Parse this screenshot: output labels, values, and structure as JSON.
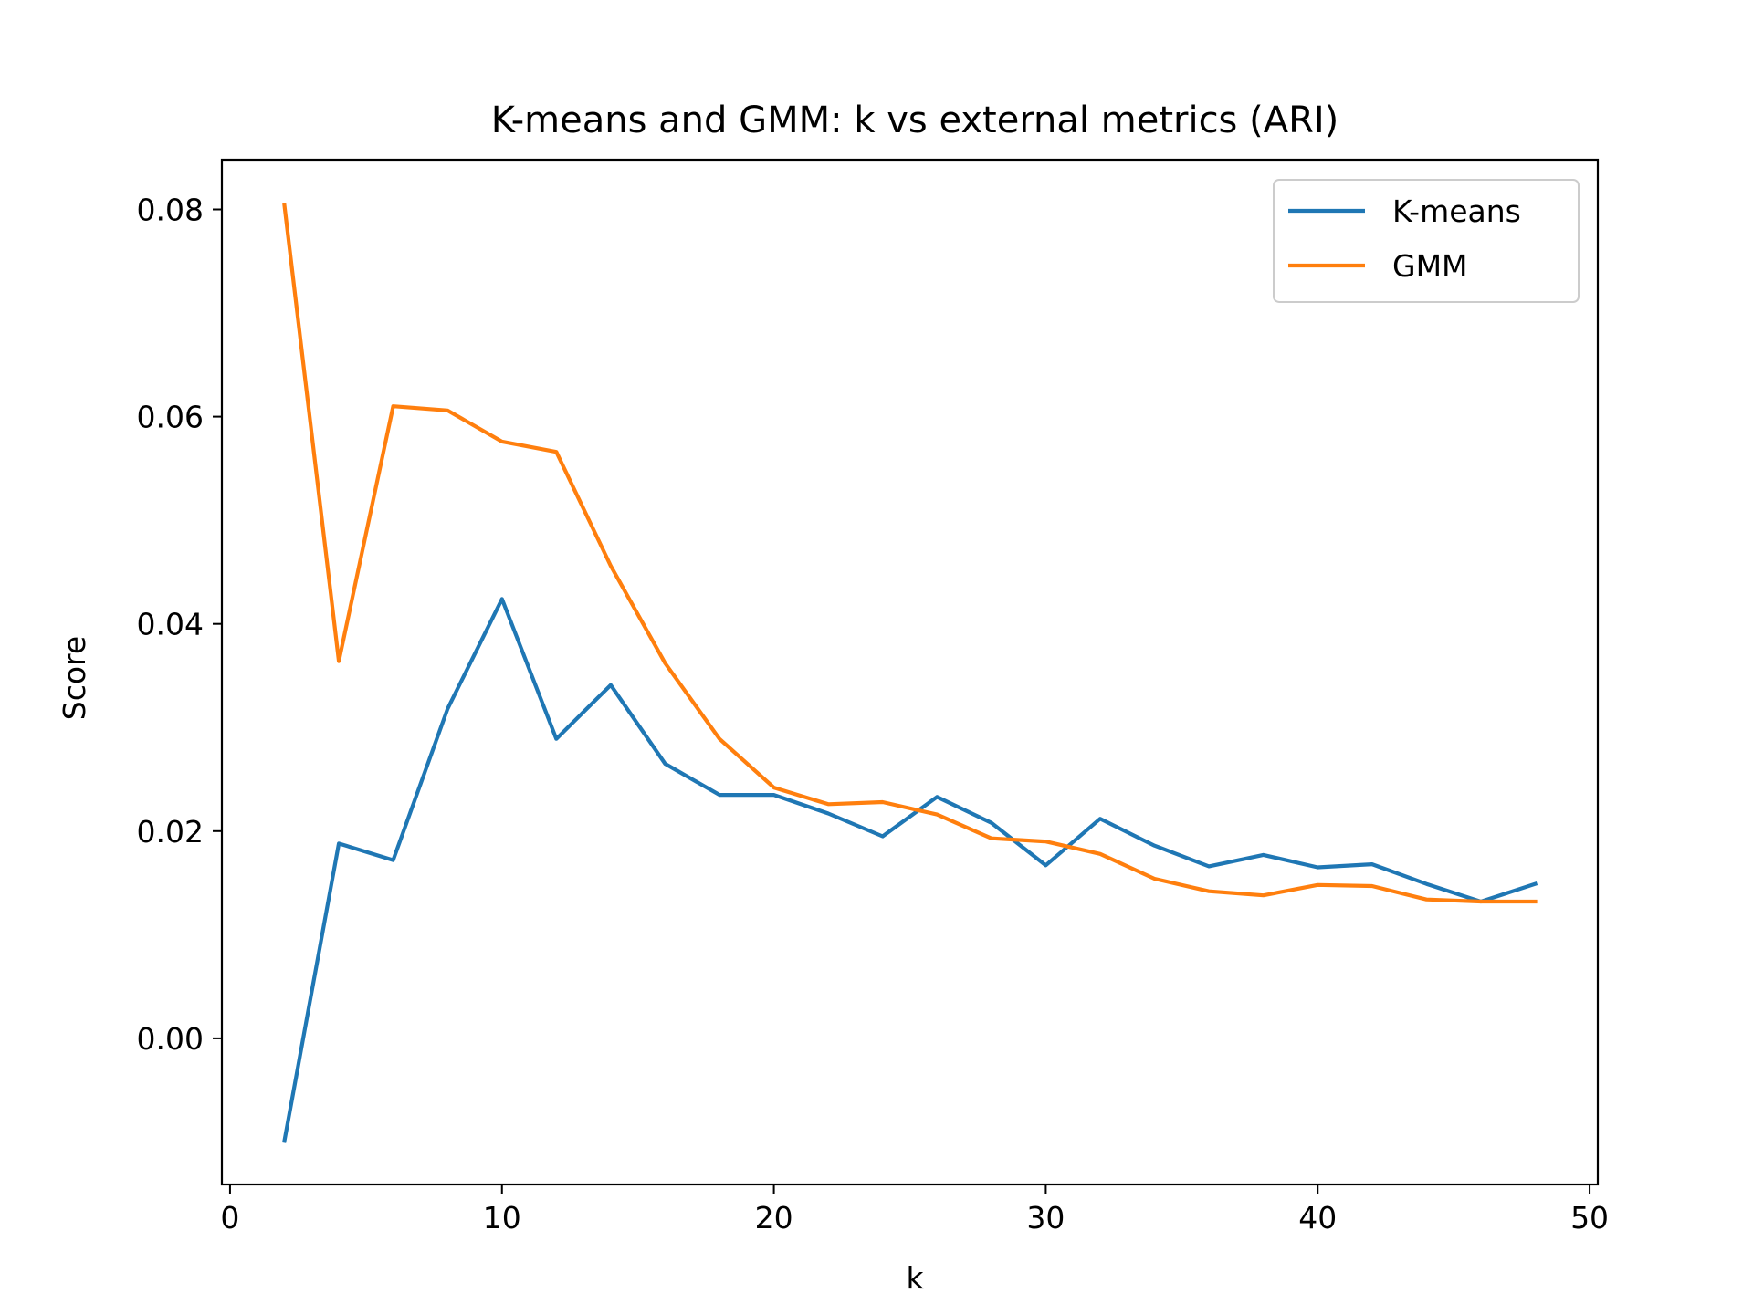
{
  "chart_data": {
    "type": "line",
    "title": "K-means and GMM: k vs external metrics (ARI)",
    "xlabel": "k",
    "ylabel": "Score",
    "xlim": [
      -0.3,
      50.3
    ],
    "ylim": [
      -0.0141,
      0.0848
    ],
    "xticks": [
      0,
      10,
      20,
      30,
      40,
      50
    ],
    "yticks": [
      0.0,
      0.02,
      0.04,
      0.06,
      0.08
    ],
    "xtick_labels": [
      "0",
      "10",
      "20",
      "30",
      "40",
      "50"
    ],
    "ytick_labels": [
      "0.00",
      "0.02",
      "0.04",
      "0.06",
      "0.08"
    ],
    "grid": false,
    "legend": "top-right",
    "x": [
      2,
      4,
      6,
      8,
      10,
      12,
      14,
      16,
      18,
      20,
      22,
      24,
      26,
      28,
      30,
      32,
      34,
      36,
      38,
      40,
      42,
      44,
      46,
      48
    ],
    "series": [
      {
        "name": "K-means",
        "color": "#1f77b4",
        "values": [
          -0.0099,
          0.0188,
          0.0172,
          0.0318,
          0.0424,
          0.0289,
          0.0341,
          0.0265,
          0.0235,
          0.0235,
          0.0217,
          0.0195,
          0.0233,
          0.0208,
          0.0167,
          0.0212,
          0.0186,
          0.0166,
          0.0177,
          0.0165,
          0.0168,
          0.0149,
          0.0132,
          0.0149
        ]
      },
      {
        "name": "GMM",
        "color": "#ff7f0e",
        "values": [
          0.0804,
          0.0364,
          0.061,
          0.0606,
          0.0576,
          0.0566,
          0.0456,
          0.0362,
          0.0289,
          0.0242,
          0.0226,
          0.0228,
          0.0216,
          0.0193,
          0.019,
          0.0178,
          0.0154,
          0.0142,
          0.0138,
          0.0148,
          0.0147,
          0.0134,
          0.0132,
          0.0132
        ]
      }
    ]
  }
}
